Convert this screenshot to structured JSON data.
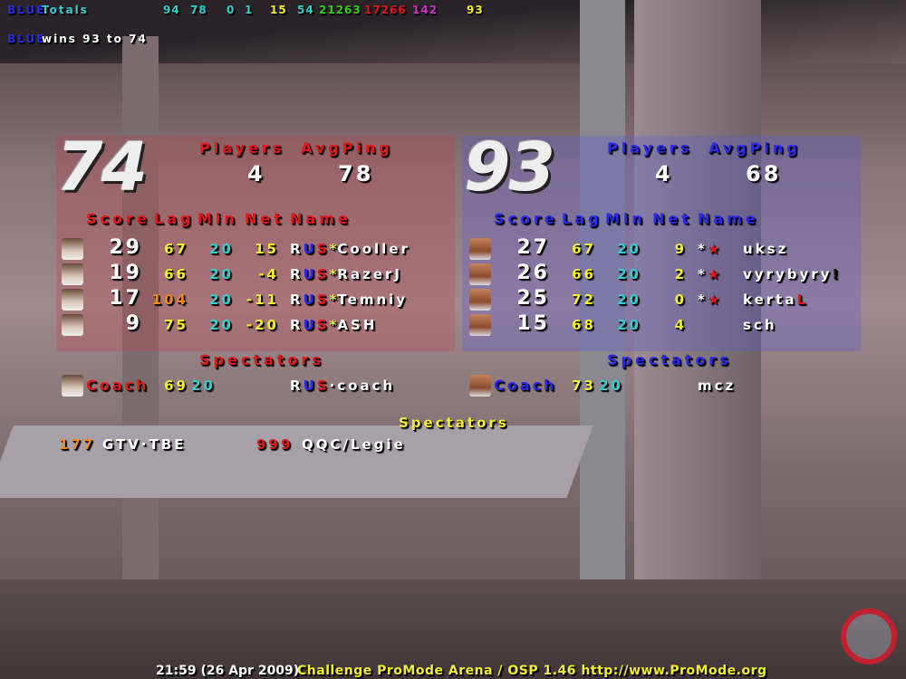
{
  "totals": {
    "team": "BLUE",
    "label": "Totals",
    "values": [
      {
        "v": "94",
        "c": "cyan"
      },
      {
        "v": "78",
        "c": "cyan"
      },
      {
        "v": "0",
        "c": "cyan"
      },
      {
        "v": "1",
        "c": "cyan"
      },
      {
        "v": "15",
        "c": "yel"
      },
      {
        "v": "54",
        "c": "cyan"
      },
      {
        "v": "21263",
        "c": "grn"
      },
      {
        "v": "17266",
        "c": "red"
      },
      {
        "v": "142",
        "c": "mag"
      },
      {
        "v": "93",
        "c": "yel"
      }
    ]
  },
  "result": {
    "team": "BLUE",
    "text": "wins 93 to 74"
  },
  "red": {
    "score": "74",
    "players_label": "Players",
    "avgping_label": "AvgPing",
    "players": "4",
    "avgping": "78",
    "headers": [
      "Score",
      "Lag",
      "Min",
      "Net",
      "Name"
    ],
    "rows": [
      {
        "score": "29",
        "lag": "67",
        "lag_color": "yel",
        "min": "20",
        "net": "15",
        "clan": [
          "R",
          "U",
          "S"
        ],
        "sep": "*",
        "name": "Cooller"
      },
      {
        "score": "19",
        "lag": "66",
        "lag_color": "yel",
        "min": "20",
        "net": "-4",
        "clan": [
          "R",
          "U",
          "S"
        ],
        "sep": "*",
        "name": "RazerJ"
      },
      {
        "score": "17",
        "lag": "104",
        "lag_color": "orange",
        "min": "20",
        "net": "-11",
        "clan": [
          "R",
          "U",
          "S"
        ],
        "sep": "*",
        "name": "Temniy"
      },
      {
        "score": "9",
        "lag": "75",
        "lag_color": "yel",
        "min": "20",
        "net": "-20",
        "clan": [
          "R",
          "U",
          "S"
        ],
        "sep": "*",
        "name": "ASH"
      }
    ],
    "spectators_label": "Spectators",
    "coach": {
      "label": "Coach",
      "lag": "69",
      "min": "20",
      "clan": [
        "R",
        "U",
        "S"
      ],
      "sep": "·",
      "name": "coach"
    }
  },
  "blue": {
    "score": "93",
    "players_label": "Players",
    "avgping_label": "AvgPing",
    "players": "4",
    "avgping": "68",
    "headers": [
      "Score",
      "Lag",
      "Min",
      "Net",
      "Name"
    ],
    "rows": [
      {
        "score": "27",
        "lag": "67",
        "lag_color": "yel",
        "min": "20",
        "net": "9",
        "tag": "*★",
        "name": "uksz",
        "suffix": ""
      },
      {
        "score": "26",
        "lag": "66",
        "lag_color": "yel",
        "min": "20",
        "net": "2",
        "tag": "*★",
        "name": "vyrybyry",
        "suffix": "!"
      },
      {
        "score": "25",
        "lag": "72",
        "lag_color": "yel",
        "min": "20",
        "net": "0",
        "tag": "*★",
        "name": "kerta",
        "suffix": "L"
      },
      {
        "score": "15",
        "lag": "68",
        "lag_color": "yel",
        "min": "20",
        "net": "4",
        "tag": "",
        "name": "sch",
        "suffix": ""
      }
    ],
    "spectators_label": "Spectators",
    "coach": {
      "label": "Coach",
      "lag": "73",
      "min": "20",
      "name": "mcz"
    }
  },
  "spectators": {
    "label": "Spectators",
    "list": [
      {
        "ping": "177",
        "ping_color": "orange",
        "name": "GTV·TBE"
      },
      {
        "ping": "999",
        "ping_color": "red",
        "name": "QQC/Legie"
      }
    ]
  },
  "footer": {
    "time": "21:59 (26 Apr 2009)",
    "mod": "Challenge ProMode Arena / OSP 1.46  http://www.ProMode.org"
  }
}
